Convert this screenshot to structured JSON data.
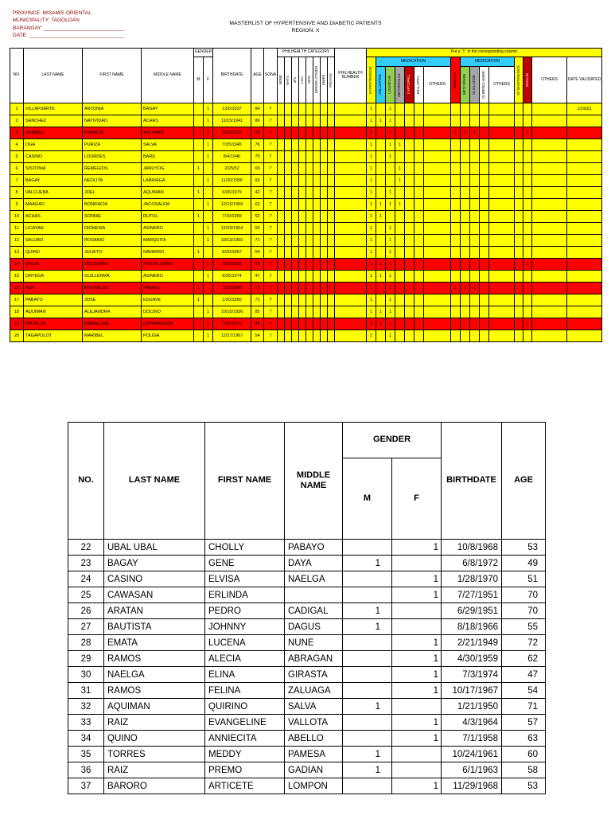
{
  "header": {
    "province": "PROVINCE: MISAMIS ORIENTAL",
    "municipality": "MUNICIPALITY: TAGOLOAN",
    "barangay": "BARANGAY: ____________________________",
    "date": "DATE: _________________________________",
    "title": "MASTERLIST OF HYPERTENSIVE AND DIABETIC PATIENTS",
    "region": "REGION: X"
  },
  "colors": {
    "row_yellow": "#FFFF00",
    "row_red": "#FF0000",
    "medication_header_cyan": "#33CCFF",
    "green": "#92D050",
    "gray": "#A6A6A6",
    "maroon": "#C00000",
    "diabetes_red": "#FF0000",
    "corner_text_red": "#8b0000"
  },
  "table1": {
    "banner": "Put a \"1\" in the corresponding column",
    "headers": {
      "no": "NO.",
      "last_name": "LAST NAME",
      "first_name": "FIRST NAME",
      "middle_name": "MIDDLE NAME",
      "gender": "GENDER",
      "m": "M",
      "f": "F",
      "birthdate": "BIRTHDATE",
      "age": "AGE",
      "sona": "SONA",
      "philhealth_category": "PHILHEALTH CATEGORY",
      "philhealth_number": "PHILHEALTH NUMBER",
      "hypertension": "HYPERTENSION",
      "medication": "MEDICATION",
      "diabetes": "DIABETES",
      "others": "OTHERS",
      "w_maintenance": "W/ MAINTENANCE",
      "insulin": "INSULIN",
      "date_validated": "DATE VALIDATED"
    },
    "philhealth_categories": [
      "NONE",
      "NHTS",
      "4Ps",
      "LGU",
      "OFW",
      "SENIOR CITIZEN",
      "DepEd",
      "PRIVATE"
    ],
    "med1": [
      "AMLODIPINE",
      "LOSARTAN",
      "METOPROLOL",
      "CAPTOPRIL",
      "ENALAPRIL"
    ],
    "med2": [
      "METFORMIN",
      "GLICLAZIDE",
      "GLIBENCLAMIDE"
    ],
    "rows": [
      {
        "no": "1",
        "last": "VILLAFUERTE",
        "first": "ANTONIA",
        "middle": "BAGAY",
        "gender": "F",
        "birthdate": "12/6/1937",
        "age": "84",
        "sona": "7",
        "meds": {
          "hypertension": "1",
          "losartan": "1"
        },
        "date_validated": "1/19/21",
        "highlight": "yellow"
      },
      {
        "no": "2",
        "last": "SANCHEZ",
        "first": "NATIVIDAD",
        "middle": "ACHAS",
        "gender": "F",
        "birthdate": "11/15/1941",
        "age": "80",
        "sona": "7",
        "meds": {
          "hypertension": "1",
          "amlodipine": "1",
          "losartan": "1"
        },
        "highlight": "yellow"
      },
      {
        "no": "3",
        "last": "SAMBAS",
        "first": "FRANCIA",
        "middle": "AQUIMAN",
        "gender": "F",
        "birthdate": "3/25/1962",
        "age": "59",
        "sona": "7",
        "meds": {
          "hypertension": "1",
          "losartan": "1",
          "diabetes": "1",
          "metformin": "1",
          "gliclazide": "1",
          "insulin": "1"
        },
        "highlight": "red"
      },
      {
        "no": "4",
        "last": "OGA",
        "first": "PURIZA",
        "middle": "SALVA",
        "gender": "F",
        "birthdate": "7/25/1945",
        "age": "76",
        "sona": "7",
        "meds": {
          "hypertension": "1",
          "losartan": "1",
          "metoprolol": "1"
        },
        "highlight": "yellow"
      },
      {
        "no": "5",
        "last": "CASINO",
        "first": "LOURDES",
        "middle": "BARIL",
        "gender": "F",
        "birthdate": "8/4/1946",
        "age": "75",
        "sona": "7",
        "meds": {
          "hypertension": "1",
          "losartan": "1"
        },
        "highlight": "yellow"
      },
      {
        "no": "6",
        "last": "SISTONIA",
        "first": "REMEGIOS",
        "middle": "JANUYOG",
        "gender": "M",
        "birthdate": "2/25/52",
        "age": "69",
        "sona": "7",
        "meds": {
          "hypertension": "1",
          "metoprolol": "1"
        },
        "highlight": "yellow"
      },
      {
        "no": "7",
        "last": "BAGAY",
        "first": "NEOLITA",
        "middle": "LABRIAGA",
        "gender": "F",
        "birthdate": "11/20/1956",
        "age": "65",
        "sona": "7",
        "meds": {
          "hypertension": "1",
          "metoprolol": "1"
        },
        "highlight": "yellow"
      },
      {
        "no": "8",
        "last": "VALCUEBA",
        "first": "JOEL",
        "middle": "AQUIMAN",
        "gender": "M",
        "birthdate": "6/26/1979",
        "age": "42",
        "sona": "7",
        "meds": {
          "hypertension": "1",
          "losartan": "1"
        },
        "highlight": "yellow"
      },
      {
        "no": "9",
        "last": "MAAGAD",
        "first": "BONIFACIA",
        "middle": "JACOSALEM",
        "gender": "F",
        "birthdate": "12/15/1959",
        "age": "62",
        "sona": "7",
        "meds": {
          "hypertension": "1",
          "amlodipine": "1",
          "losartan": "1",
          "metoprolol": "1"
        },
        "highlight": "yellow"
      },
      {
        "no": "10",
        "last": "ACHAS",
        "first": "SONNIE",
        "middle": "RUTOL",
        "gender": "M",
        "birthdate": "7/19/1969",
        "age": "52",
        "sona": "7",
        "meds": {
          "hypertension": "1",
          "amlodipine": "1"
        },
        "highlight": "yellow"
      },
      {
        "no": "11",
        "last": "LICAYAN",
        "first": "DIONESIA",
        "middle": "ASINERO",
        "gender": "F",
        "birthdate": "12/26/1954",
        "age": "66",
        "sona": "7",
        "meds": {
          "hypertension": "1",
          "losartan": "1"
        },
        "highlight": "yellow"
      },
      {
        "no": "12",
        "last": "SALUBO",
        "first": "ROSARIO",
        "middle": "MARQUITA",
        "gender": "F",
        "birthdate": "10/13/1950",
        "age": "71",
        "sona": "7",
        "meds": {
          "hypertension": "1",
          "losartan": "1"
        },
        "highlight": "yellow"
      },
      {
        "no": "13",
        "last": "QUINO",
        "first": "JULIETO",
        "middle": "NAVARRO",
        "gender": "M",
        "birthdate": "8/20/1967",
        "age": "54",
        "sona": "7",
        "meds": {
          "hypertension": "1",
          "losartan": "1"
        },
        "highlight": "yellow"
      },
      {
        "no": "14",
        "last": "SALVA",
        "first": "NICONORA",
        "middle": "PAGTALUNAN",
        "gender": "F",
        "birthdate": "10/5/1955",
        "age": "66",
        "sona": "7",
        "meds": {
          "hypertension": "1",
          "amlodipine": "1",
          "losartan": "1",
          "insulin": "1"
        },
        "highlight": "red"
      },
      {
        "no": "15",
        "last": "ORTEGA",
        "first": "GUILLERMA",
        "middle": "ASINERO",
        "gender": "F",
        "birthdate": "6/25/1974",
        "age": "47",
        "sona": "7",
        "meds": {
          "hypertension": "1",
          "amlodipine": "1",
          "losartan": "1"
        },
        "highlight": "yellow"
      },
      {
        "no": "16",
        "last": "ADA",
        "first": "REYNALDO",
        "middle": "PABAYO",
        "gender": "M",
        "birthdate": "7/25/1948",
        "age": "73",
        "sona": "7",
        "meds": {
          "hypertension": "1",
          "losartan": "1",
          "diabetes": "1",
          "metformin": "1",
          "gliclazide": "1"
        },
        "highlight": "red"
      },
      {
        "no": "17",
        "last": "PABAYO",
        "first": "JOSE",
        "middle": "EDUAVE",
        "gender": "M",
        "birthdate": "1/20/1950",
        "age": "71",
        "sona": "7",
        "meds": {
          "hypertension": "1",
          "losartan": "1"
        },
        "highlight": "yellow"
      },
      {
        "no": "18",
        "last": "AQUIMAN",
        "first": "ALEJANDRA",
        "middle": "DOCINO",
        "gender": "F",
        "birthdate": "10/10/1936",
        "age": "85",
        "sona": "7",
        "meds": {
          "hypertension": "1",
          "amlodipine": "1",
          "losartan": "1"
        },
        "highlight": "yellow"
      },
      {
        "no": "19",
        "last": "PACALDO",
        "first": "MERALUNA",
        "middle": "ESPARAGOZA",
        "gender": "F",
        "birthdate": "7/20/1975",
        "age": "46",
        "sona": "7",
        "meds": {
          "hypertension": "1",
          "amlodipine": "1",
          "losartan": "1",
          "insulin": "1"
        },
        "highlight": "red"
      },
      {
        "no": "20",
        "last": "TAGAPOLOT",
        "first": "MARIBEL",
        "middle": "POLIGA",
        "gender": "F",
        "birthdate": "12/27/1967",
        "age": "54",
        "sona": "7",
        "meds": {
          "hypertension": "1",
          "losartan": "1"
        },
        "highlight": "yellow"
      }
    ]
  },
  "table2": {
    "headers": {
      "no": "NO.",
      "last_name": "LAST NAME",
      "first_name": "FIRST NAME",
      "middle_name": "MIDDLE NAME",
      "gender": "GENDER",
      "m": "M",
      "f": "F",
      "birthdate": "BIRTHDATE",
      "age": "AGE"
    },
    "rows": [
      {
        "no": "22",
        "last": "UBAL UBAL",
        "first": "CHOLLY",
        "middle": "PABAYO",
        "gender": "F",
        "birthdate": "10/8/1968",
        "age": "53"
      },
      {
        "no": "23",
        "last": "BAGAY",
        "first": "GENE",
        "middle": "DAYA",
        "gender": "M",
        "birthdate": "6/8/1972",
        "age": "49"
      },
      {
        "no": "24",
        "last": "CASINO",
        "first": "ELVISA",
        "middle": "NAELGA",
        "gender": "F",
        "birthdate": "1/28/1970",
        "age": "51"
      },
      {
        "no": "25",
        "last": "CAWASAN",
        "first": "ERLINDA",
        "middle": "",
        "gender": "F",
        "birthdate": "7/27/1951",
        "age": "70"
      },
      {
        "no": "26",
        "last": "ARATAN",
        "first": "PEDRO",
        "middle": "CADIGAL",
        "gender": "M",
        "birthdate": "6/29/1951",
        "age": "70"
      },
      {
        "no": "27",
        "last": "BAUTISTA",
        "first": "JOHNNY",
        "middle": "DAGUS",
        "gender": "M",
        "birthdate": "8/18/1966",
        "age": "55"
      },
      {
        "no": "28",
        "last": "EMATA",
        "first": "LUCENA",
        "middle": "NUNE",
        "gender": "F",
        "birthdate": "2/21/1949",
        "age": "72"
      },
      {
        "no": "29",
        "last": "RAMOS",
        "first": "ALECIA",
        "middle": "ABRAGAN",
        "gender": "F",
        "birthdate": "4/30/1959",
        "age": "62"
      },
      {
        "no": "30",
        "last": "NAELGA",
        "first": "ELINA",
        "middle": "GIRASTA",
        "gender": "F",
        "birthdate": "7/3/1974",
        "age": "47"
      },
      {
        "no": "31",
        "last": "RAMOS",
        "first": "FELINA",
        "middle": "ZALUAGA",
        "gender": "F",
        "birthdate": "10/17/1967",
        "age": "54"
      },
      {
        "no": "32",
        "last": "AQUIMAN",
        "first": "QUIRINO",
        "middle": "SALVA",
        "gender": "M",
        "birthdate": "1/21/1950",
        "age": "71"
      },
      {
        "no": "33",
        "last": "RAIZ",
        "first": "EVANGELINE",
        "middle": "VALLOTA",
        "gender": "F",
        "birthdate": "4/3/1964",
        "age": "57"
      },
      {
        "no": "34",
        "last": "QUINO",
        "first": "ANNIECITA",
        "middle": "ABELLO",
        "gender": "F",
        "birthdate": "7/1/1958",
        "age": "63"
      },
      {
        "no": "35",
        "last": "TORRES",
        "first": "MEDDY",
        "middle": "PAMESA",
        "gender": "M",
        "birthdate": "10/24/1961",
        "age": "60"
      },
      {
        "no": "36",
        "last": "RAIZ",
        "first": "PREMO",
        "middle": "GADIAN",
        "gender": "M",
        "birthdate": "6/1/1963",
        "age": "58"
      },
      {
        "no": "37",
        "last": "BARORO",
        "first": "ARTICETE",
        "middle": "LOMPON",
        "gender": "F",
        "birthdate": "11/29/1968",
        "age": "53"
      }
    ]
  }
}
